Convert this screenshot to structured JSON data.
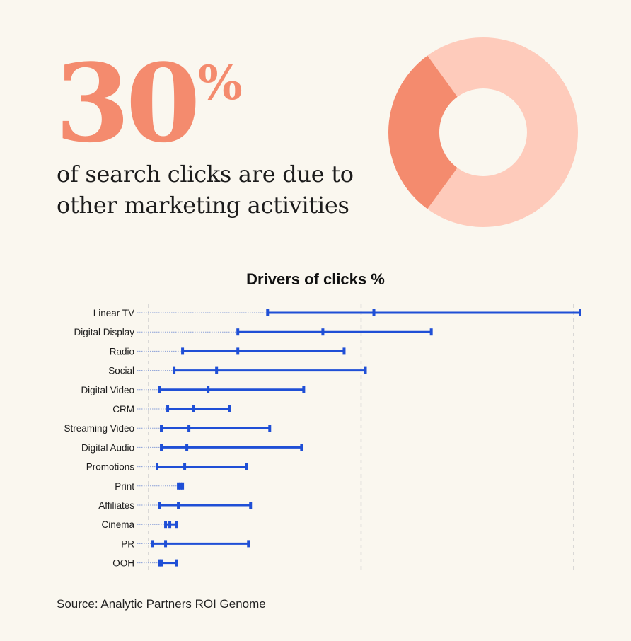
{
  "headline": {
    "value": "30",
    "unit": "%",
    "line1": "of search clicks are due to",
    "line2": "other marketing activities"
  },
  "donut": {
    "highlight_share": 30,
    "highlight_color": "#f48b6e",
    "rest_color": "#fecbbb"
  },
  "chart_data": {
    "type": "range",
    "title": "Drivers of clicks %",
    "categories": [
      "Linear TV",
      "Digital Display",
      "Radio",
      "Social",
      "Digital Video",
      "CRM",
      "Streaming Video",
      "Digital Audio",
      "Promotions",
      "Print",
      "Affiliates",
      "Cinema",
      "PR",
      "OOH"
    ],
    "low": [
      5.6,
      4.2,
      1.6,
      1.2,
      0.5,
      0.9,
      0.6,
      0.6,
      0.4,
      1.4,
      0.5,
      0.8,
      0.2,
      0.5
    ],
    "mid": [
      10.6,
      8.2,
      4.2,
      3.2,
      2.8,
      2.1,
      1.9,
      1.8,
      1.7,
      1.5,
      1.4,
      1.0,
      0.8,
      0.6
    ],
    "high": [
      20.3,
      13.3,
      9.2,
      10.2,
      7.3,
      3.8,
      5.7,
      7.2,
      4.6,
      1.6,
      4.8,
      1.3,
      4.7,
      1.3
    ],
    "xlim": [
      0,
      20.3
    ],
    "gridlines": [
      0,
      10,
      20
    ],
    "series_color": "#1f4fd6",
    "guide_color": "#8aa0d8"
  },
  "source": "Source: Analytic Partners ROI Genome"
}
